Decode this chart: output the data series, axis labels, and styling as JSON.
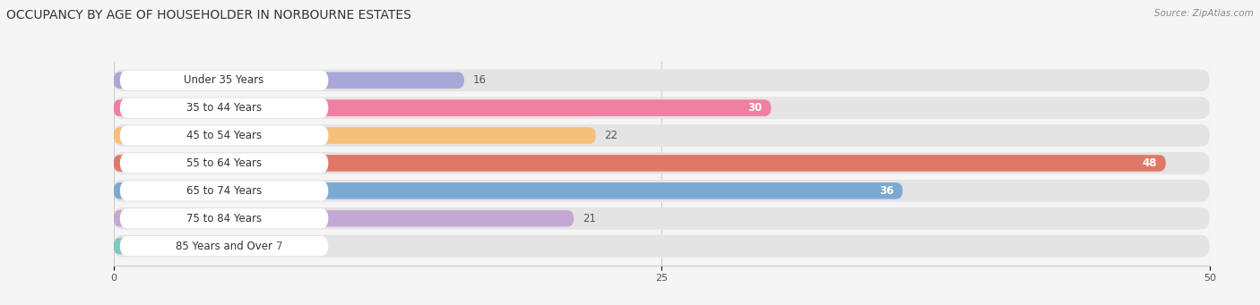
{
  "categories": [
    "Under 35 Years",
    "35 to 44 Years",
    "45 to 54 Years",
    "55 to 64 Years",
    "65 to 74 Years",
    "75 to 84 Years",
    "85 Years and Over"
  ],
  "values": [
    16,
    30,
    22,
    48,
    36,
    21,
    7
  ],
  "bar_colors": [
    "#a8a8d8",
    "#f07fa0",
    "#f5c07a",
    "#e07868",
    "#7aaad4",
    "#c4a8d4",
    "#7ec8c0"
  ],
  "title": "OCCUPANCY BY AGE OF HOUSEHOLDER IN NORBOURNE ESTATES",
  "source": "Source: ZipAtlas.com",
  "xlim": [
    0,
    50
  ],
  "xticks": [
    0,
    25,
    50
  ],
  "title_fontsize": 10,
  "label_fontsize": 8.5,
  "value_fontsize": 8.5,
  "background_color": "#f5f5f5",
  "bar_row_bg": "#e4e4e4",
  "white_label_bg": "#ffffff",
  "value_white_threshold": 25
}
